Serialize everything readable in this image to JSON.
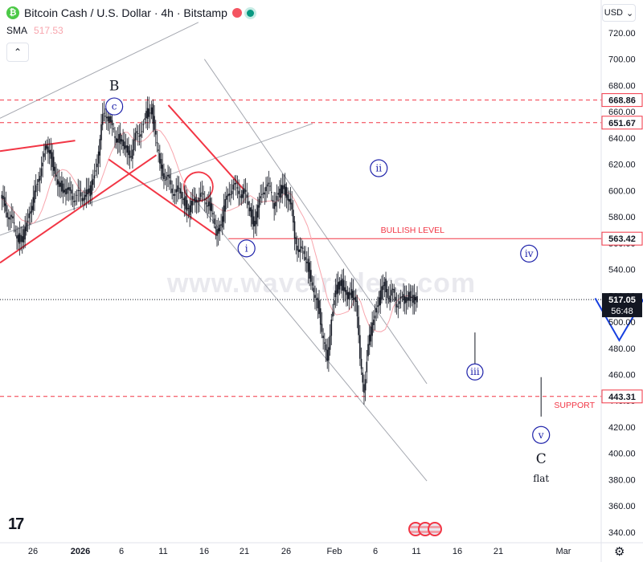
{
  "header": {
    "title": "Bitcoin Cash / U.S. Dollar · 4h · Bitstamp",
    "coin_letter": "₿",
    "indicator_label": "SMA",
    "indicator_value": "517.53",
    "collapse_glyph": "⌃"
  },
  "currency_selector": {
    "label": "USD",
    "caret": "⌄"
  },
  "watermark": "www.wavetraders.com",
  "branding": {
    "logo": "17"
  },
  "icons": {
    "coin": "bitcoin-cash-coin-icon",
    "settings": "gear-icon",
    "events": "us-flag-icon"
  },
  "colors": {
    "accent_red": "#f23645",
    "wave_blue": "#1e22aa",
    "projection_blue": "#1740e0",
    "sma": "#f8a5ad"
  },
  "chart_data": {
    "type": "line",
    "title": "Bitcoin Cash / U.S. Dollar · 4h · Bitstamp",
    "xlabel": "",
    "ylabel": "",
    "ylim": [
      332,
      745
    ],
    "x_ticks": [
      "26",
      "2026",
      "6",
      "11",
      "16",
      "21",
      "26",
      "Feb",
      "6",
      "11",
      "16",
      "21",
      "Mar"
    ],
    "y_ticks": [
      340,
      360,
      380,
      400,
      420,
      440,
      460,
      480,
      500,
      520,
      540,
      560,
      580,
      600,
      620,
      640,
      660,
      680,
      700,
      720
    ],
    "grid": false,
    "series": [
      {
        "values": [
          594,
          590,
          580,
          575,
          567,
          560,
          570,
          583,
          592,
          605,
          620,
          630,
          633,
          616,
          605,
          603,
          600,
          598,
          595,
          597,
          595,
          598,
          600,
          612,
          630,
          655,
          660,
          650,
          640,
          640,
          635,
          630,
          628,
          640,
          645,
          650,
          660,
          662,
          640,
          620,
          612,
          608,
          600,
          600,
          598,
          592,
          585,
          590,
          595,
          595,
          593,
          591,
          578,
          568,
          575,
          590,
          600,
          603,
          600,
          598,
          597,
          585,
          575,
          585,
          600,
          603,
          600,
          590,
          596,
          603,
          598,
          590,
          565,
          555,
          552,
          548,
          530,
          518,
          510,
          485,
          470,
          505,
          520,
          533,
          525,
          519,
          522,
          518,
          470,
          450,
          480,
          500,
          510,
          520,
          530,
          518,
          522,
          515,
          516,
          518,
          520,
          517,
          516
        ]
      }
    ],
    "price_levels": [
      {
        "label": "668.86",
        "value": 668.86,
        "style": "dashed"
      },
      {
        "label": "651.67",
        "value": 651.67,
        "style": "dashed"
      },
      {
        "label": "563.42",
        "value": 563.42,
        "style": "solid",
        "annotation": "BULLISH LEVEL"
      },
      {
        "label": "443.31",
        "value": 443.31,
        "style": "dashed",
        "annotation": "SUPPORT"
      }
    ],
    "current_price": {
      "label": "517.05",
      "value": 517.05,
      "countdown": "56:48"
    },
    "wave_labels": [
      {
        "text": "B",
        "x": 19,
        "y": 680
      },
      {
        "text": "c",
        "x": 19,
        "y": 664,
        "circled": true
      },
      {
        "text": "i",
        "x": 41,
        "y": 556,
        "circled": true
      },
      {
        "text": "ii",
        "x": 63,
        "y": 617,
        "circled": true
      },
      {
        "text": "iii",
        "x": 79,
        "y": 462,
        "circled": true
      },
      {
        "text": "iv",
        "x": 88,
        "y": 552,
        "circled": true
      },
      {
        "text": "v",
        "x": 90,
        "y": 414,
        "circled": true
      },
      {
        "text": "C",
        "x": 90,
        "y": 396
      },
      {
        "text": "flat",
        "x": 90,
        "y": 382
      }
    ],
    "projection": [
      [
        99,
        518
      ],
      [
        103,
        486
      ],
      [
        112,
        556
      ]
    ]
  }
}
